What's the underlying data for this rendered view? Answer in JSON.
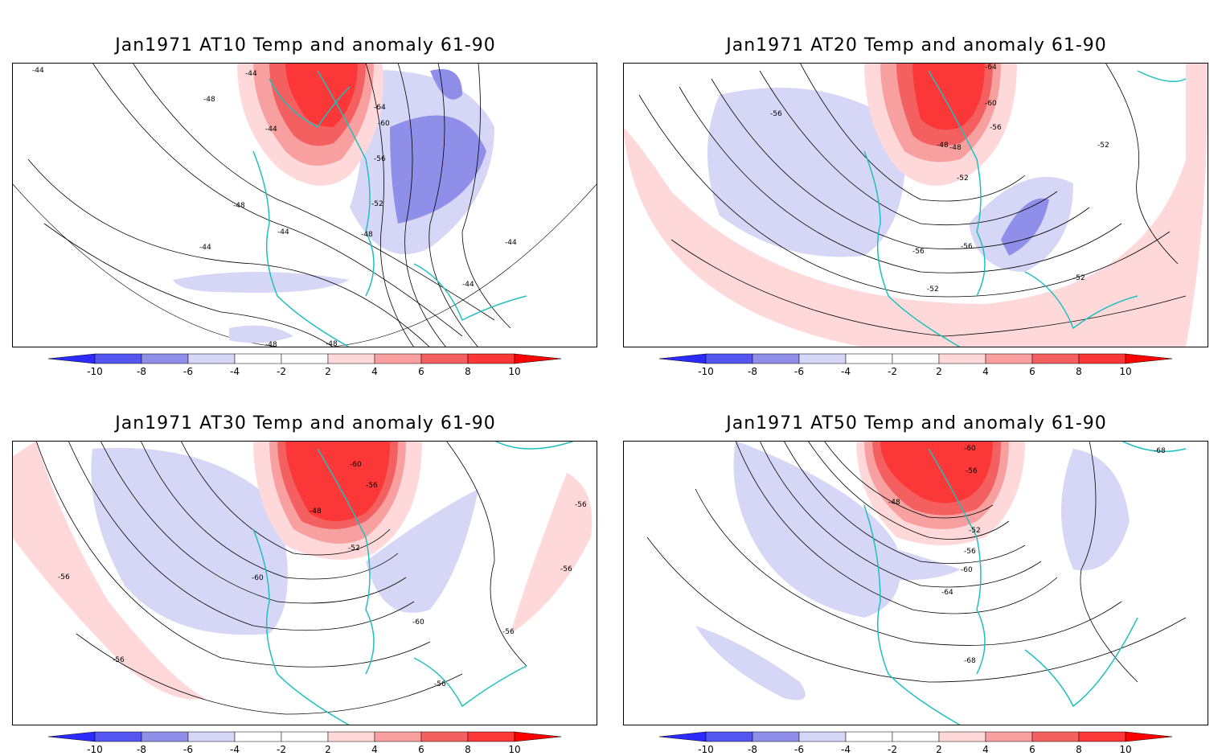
{
  "colors": {
    "neg10": "#2b2bff",
    "neg8": "#5555f0",
    "neg6": "#8f8fe9",
    "neg4": "#d6d6f7",
    "pos4": "#ffd9d9",
    "pos6": "#f8a0a0",
    "pos8": "#f46060",
    "pos10": "#fc3737",
    "over": "#ff0000",
    "coast": "#1fbfbf",
    "contour": "#000000"
  },
  "colorbar": {
    "labels": [
      "-10",
      "-8",
      "-6",
      "-4",
      "-2",
      "2",
      "4",
      "6",
      "8",
      "10"
    ]
  },
  "panels": [
    {
      "title": "Jan1971 AT10 Temp and anomaly 61-90",
      "contour_labels": [
        "-44",
        "-44",
        "-48",
        "-44",
        "-64",
        "-60",
        "-56",
        "-52",
        "-48",
        "-48",
        "-44",
        "-44",
        "-44",
        "-44",
        "-48",
        "-48"
      ]
    },
    {
      "title": "Jan1971 AT20 Temp and anomaly 61-90",
      "contour_labels": [
        "-64",
        "-60",
        "-56",
        "-56",
        "-48",
        "-48",
        "-52",
        "-52",
        "-56",
        "-56",
        "-52",
        "-52"
      ]
    },
    {
      "title": "Jan1971 AT30 Temp and anomaly 61-90",
      "contour_labels": [
        "-60",
        "-56",
        "-48",
        "-52",
        "-60",
        "-56",
        "-56",
        "-56",
        "-60",
        "-56",
        "-56",
        "-56"
      ]
    },
    {
      "title": "Jan1971 AT50 Temp and anomaly 61-90",
      "contour_labels": [
        "-60",
        "-56",
        "-48",
        "-52",
        "-56",
        "-60",
        "-64",
        "-68",
        "-68"
      ]
    }
  ]
}
